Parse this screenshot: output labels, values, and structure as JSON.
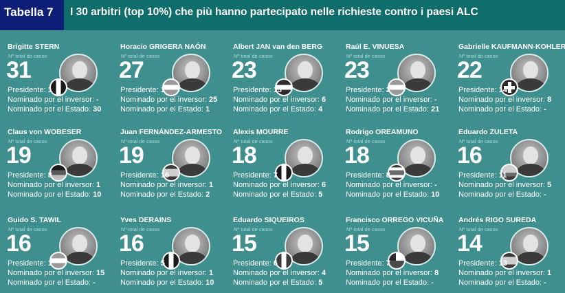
{
  "header": {
    "tab_label": "Tabella 7",
    "title": "I 30 arbitri (top 10%) che più hanno partecipato nelle richieste contro i paesi ALC"
  },
  "labels": {
    "casos": "Nº total de casos",
    "presidente": "Presidente:",
    "inversor": "Nominado por el inversor:",
    "estado": "Nominado por el Estado:"
  },
  "arbitrators": [
    {
      "name": "Brigitte STERN",
      "total": "31",
      "presidente": "1",
      "inversor": "-",
      "estado": "30",
      "flag": "france"
    },
    {
      "name": "Horacio GRIGERA NAÓN",
      "total": "27",
      "presidente": "1",
      "inversor": "25",
      "estado": "1",
      "flag": "argentina"
    },
    {
      "name": "Albert JAN van den BERG",
      "total": "23",
      "presidente": "13",
      "inversor": "6",
      "estado": "4",
      "flag": "netherlands"
    },
    {
      "name": "Raúl E. VINUESA",
      "total": "23",
      "presidente": "2",
      "inversor": "-",
      "estado": "21",
      "flag": "argentina"
    },
    {
      "name": "Gabrielle KAUFMANN-KOHLER",
      "total": "22",
      "presidente": "14",
      "inversor": "8",
      "estado": "-",
      "flag": "switzerland"
    },
    {
      "name": "Claus von WOBESER",
      "total": "19",
      "presidente": "8",
      "inversor": "1",
      "estado": "10",
      "flag": "mexico-germany"
    },
    {
      "name": "Juan FERNÁNDEZ-ARMESTO",
      "total": "19",
      "presidente": "16",
      "inversor": "1",
      "estado": "2",
      "flag": "spain"
    },
    {
      "name": "Alexis MOURRE",
      "total": "18",
      "presidente": "7",
      "inversor": "6",
      "estado": "5",
      "flag": "france"
    },
    {
      "name": "Rodrigo OREAMUNO",
      "total": "18",
      "presidente": "8",
      "inversor": "-",
      "estado": "10",
      "flag": "costa-rica"
    },
    {
      "name": "Eduardo ZULETA",
      "total": "16",
      "presidente": "11",
      "inversor": "5",
      "estado": "-",
      "flag": "colombia"
    },
    {
      "name": "Guido S. TAWIL",
      "total": "16",
      "presidente": "1",
      "inversor": "15",
      "estado": "-",
      "flag": "argentina"
    },
    {
      "name": "Yves DERAINS",
      "total": "16",
      "presidente": "5",
      "inversor": "1",
      "estado": "10",
      "flag": "france"
    },
    {
      "name": "Eduardo SIQUEIROS",
      "total": "15",
      "presidente": "6",
      "inversor": "4",
      "estado": "5",
      "flag": "mexico"
    },
    {
      "name": "Francisco ORREGO VICUÑA",
      "total": "15",
      "presidente": "7",
      "inversor": "8",
      "estado": "-",
      "flag": "chile"
    },
    {
      "name": "Andrés RIGO SUREDA",
      "total": "14",
      "presidente": "13",
      "inversor": "1",
      "estado": "-",
      "flag": "spain"
    }
  ]
}
